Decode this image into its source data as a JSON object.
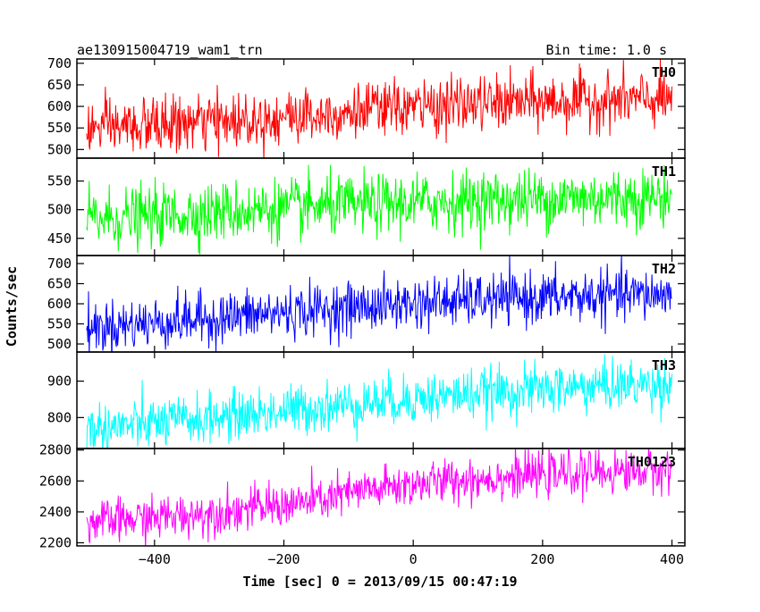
{
  "header": {
    "title": "ae130915004719_wam1_trn",
    "bin_time": "Bin time: 1.0 s"
  },
  "axes": {
    "ylabel": "Counts/sec",
    "xlabel": "Time [sec] 0 = 2013/09/15 00:47:19"
  },
  "chart_data": {
    "type": "line",
    "title": "ae130915004719_wam1_trn",
    "subtitle": "Bin time: 1.0 s",
    "xlabel": "Time [sec] 0 = 2013/09/15 00:47:19",
    "ylabel": "Counts/sec",
    "xlim": [
      -520,
      420
    ],
    "x_ticks": [
      -400,
      -200,
      0,
      200,
      400
    ],
    "x_tick_labels": [
      "−400",
      "−200",
      "0",
      "200",
      "400"
    ],
    "data_x_range": [
      -505,
      400
    ],
    "bin_seconds": 1.0,
    "grid": false,
    "panels": [
      {
        "label": "TH0",
        "color": "#ff0000",
        "ylim": [
          480,
          710
        ],
        "y_ticks": [
          500,
          550,
          600,
          650,
          700
        ],
        "trend_x": [
          -505,
          -400,
          -300,
          -200,
          -100,
          0,
          100,
          200,
          300,
          400
        ],
        "trend_y": [
          548,
          556,
          565,
          576,
          588,
          598,
          606,
          611,
          614,
          616
        ],
        "noise_sd": 32
      },
      {
        "label": "TH1",
        "color": "#00ff00",
        "ylim": [
          420,
          590
        ],
        "y_ticks": [
          450,
          500,
          550
        ],
        "trend_x": [
          -505,
          -400,
          -300,
          -200,
          -100,
          0,
          100,
          200,
          300,
          400
        ],
        "trend_y": [
          483,
          489,
          496,
          502,
          507,
          512,
          516,
          519,
          521,
          522
        ],
        "noise_sd": 26
      },
      {
        "label": "TH2",
        "color": "#0000ff",
        "ylim": [
          480,
          720
        ],
        "y_ticks": [
          500,
          550,
          600,
          650,
          700
        ],
        "trend_x": [
          -505,
          -400,
          -300,
          -200,
          -100,
          0,
          100,
          200,
          300,
          400
        ],
        "trend_y": [
          540,
          553,
          565,
          578,
          590,
          601,
          609,
          615,
          620,
          624
        ],
        "noise_sd": 32
      },
      {
        "label": "TH3",
        "color": "#00ffff",
        "ylim": [
          715,
          980
        ],
        "y_ticks": [
          800,
          900
        ],
        "trend_x": [
          -505,
          -400,
          -300,
          -200,
          -100,
          0,
          100,
          200,
          300,
          400
        ],
        "trend_y": [
          768,
          784,
          801,
          818,
          836,
          852,
          866,
          878,
          887,
          893
        ],
        "noise_sd": 34
      },
      {
        "label": "TH0123",
        "color": "#ff00ff",
        "ylim": [
          2180,
          2810
        ],
        "y_ticks": [
          2200,
          2400,
          2600,
          2800
        ],
        "trend_x": [
          -505,
          -400,
          -300,
          -200,
          -150,
          -100,
          0,
          100,
          200,
          300,
          400
        ],
        "trend_y": [
          2330,
          2360,
          2400,
          2445,
          2470,
          2520,
          2580,
          2615,
          2640,
          2660,
          2670
        ],
        "noise_sd": 70
      }
    ]
  }
}
